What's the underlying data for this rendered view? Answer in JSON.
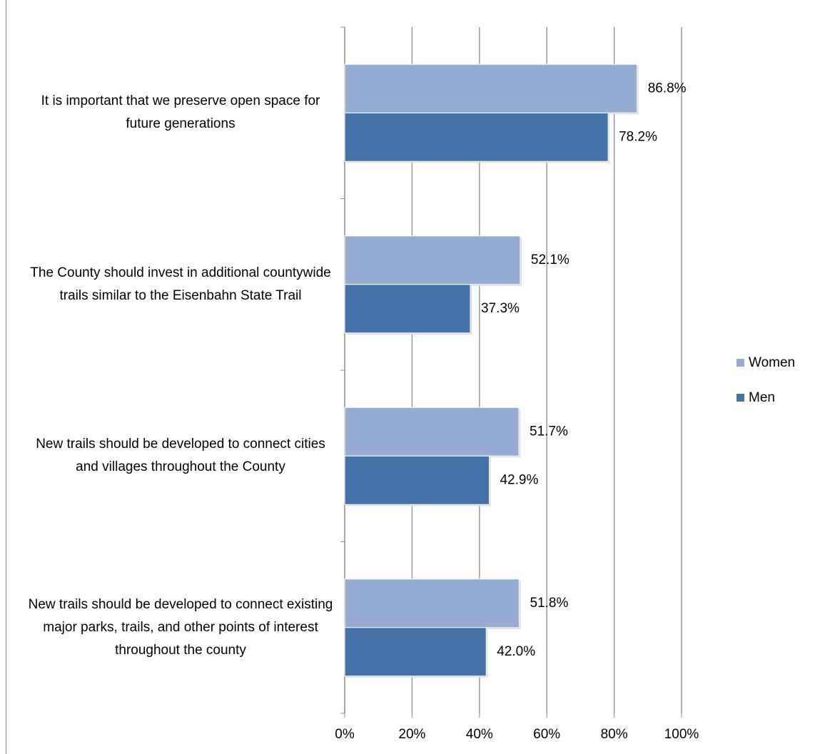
{
  "chart_data": {
    "type": "bar",
    "orientation": "horizontal",
    "categories": [
      "It is important that we preserve open space for future generations",
      "The County should invest in additional countywide trails similar to the Eisenbahn State Trail",
      "New trails should be developed to connect cities and villages throughout the County",
      "New trails should be developed to connect existing major parks, trails, and other points of interest throughout the county"
    ],
    "series": [
      {
        "name": "Women",
        "color": "#95abd3",
        "values": [
          86.8,
          52.1,
          51.7,
          51.8
        ],
        "value_labels": [
          "86.8%",
          "52.1%",
          "51.7%",
          "51.8%"
        ]
      },
      {
        "name": "Men",
        "color": "#4572a7",
        "values": [
          78.2,
          37.3,
          42.9,
          42.0
        ],
        "value_labels": [
          "78.2%",
          "37.3%",
          "42.9%",
          "42.0%"
        ]
      }
    ],
    "xlim": [
      0,
      100
    ],
    "xticks": [
      {
        "value": 0,
        "label": "0%"
      },
      {
        "value": 20,
        "label": "20%"
      },
      {
        "value": 40,
        "label": "40%"
      },
      {
        "value": 60,
        "label": "60%"
      },
      {
        "value": 80,
        "label": "80%"
      },
      {
        "value": 100,
        "label": "100%"
      }
    ],
    "grid": true,
    "legend": "right"
  }
}
